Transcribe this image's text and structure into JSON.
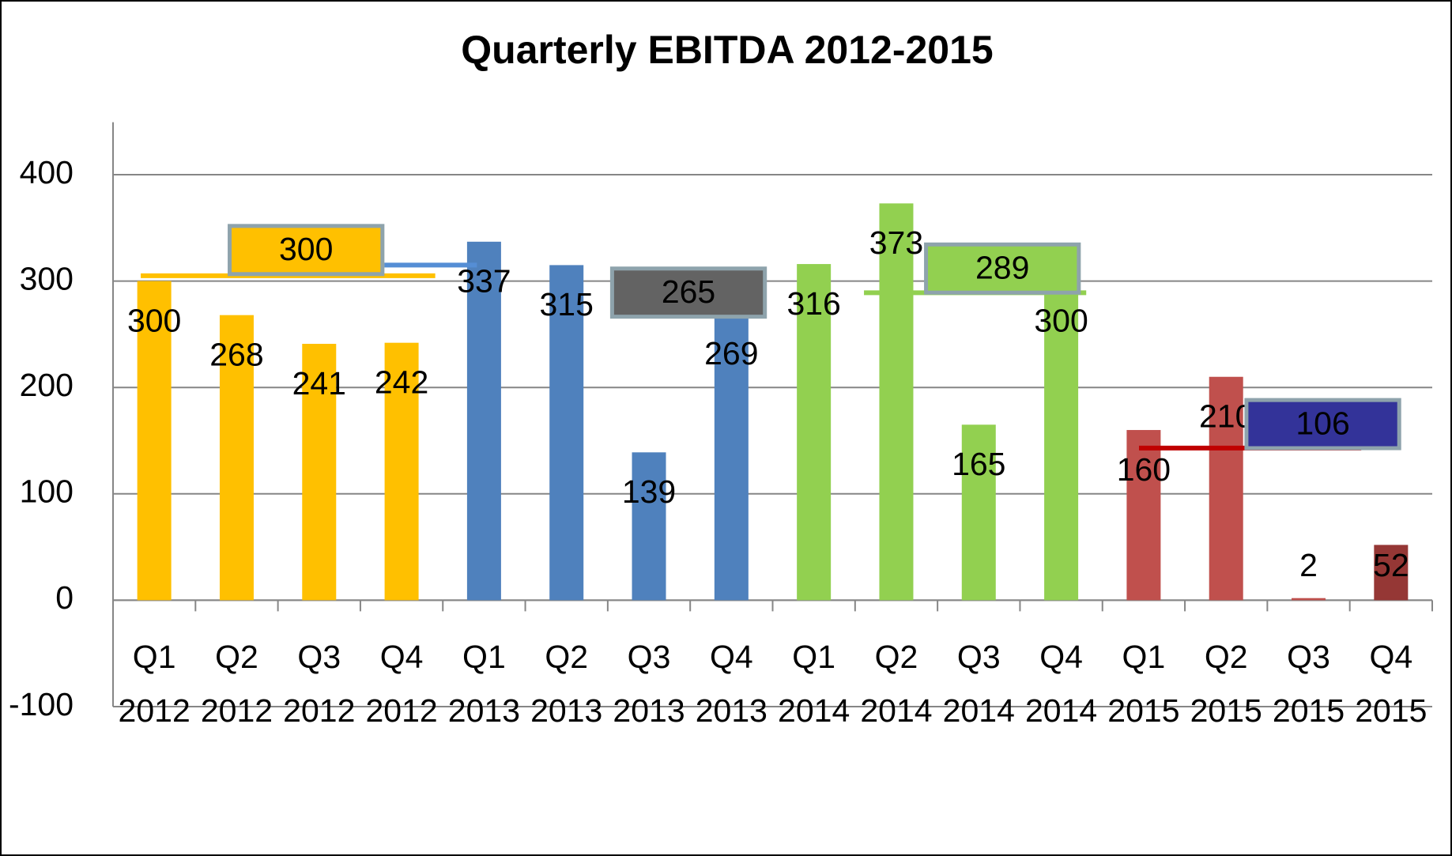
{
  "chart_data": {
    "type": "bar",
    "title": "Quarterly  EBITDA 2012-2015",
    "categories": [
      [
        "Q1",
        "2012"
      ],
      [
        "Q2",
        "2012"
      ],
      [
        "Q3",
        "2012"
      ],
      [
        "Q4",
        "2012"
      ],
      [
        "Q1",
        "2013"
      ],
      [
        "Q2",
        "2013"
      ],
      [
        "Q3",
        "2013"
      ],
      [
        "Q4",
        "2013"
      ],
      [
        "Q1",
        "2014"
      ],
      [
        "Q2",
        "2014"
      ],
      [
        "Q3",
        "2014"
      ],
      [
        "Q4",
        "2014"
      ],
      [
        "Q1",
        "2015"
      ],
      [
        "Q2",
        "2015"
      ],
      [
        "Q3",
        "2015"
      ],
      [
        "Q4",
        "2015"
      ]
    ],
    "values": [
      300,
      268,
      241,
      242,
      337,
      315,
      139,
      269,
      316,
      373,
      165,
      300,
      160,
      210,
      2,
      52
    ],
    "colors": [
      "#FFC000",
      "#FFC000",
      "#FFC000",
      "#FFC000",
      "#4F81BD",
      "#4F81BD",
      "#4F81BD",
      "#4F81BD",
      "#92D050",
      "#92D050",
      "#92D050",
      "#92D050",
      "#C0504D",
      "#C0504D",
      "#C0504D",
      "#953735"
    ],
    "ylim": [
      -100,
      400
    ],
    "yticks": [
      -100,
      0,
      100,
      200,
      300,
      400
    ],
    "grid": true,
    "reference_lines": [
      {
        "value": 305,
        "color": "#FFC000"
      },
      {
        "value": 315,
        "color": "#558ED5"
      },
      {
        "value": 289,
        "color": "#92D050"
      },
      {
        "value": 143,
        "color": "#C00000"
      }
    ],
    "annotations": [
      {
        "text": "300",
        "fill": "#FFC000"
      },
      {
        "text": "265",
        "fill": "#636363"
      },
      {
        "text": "289",
        "fill": "#92D050"
      },
      {
        "text": "106",
        "fill": "#333399"
      }
    ]
  }
}
